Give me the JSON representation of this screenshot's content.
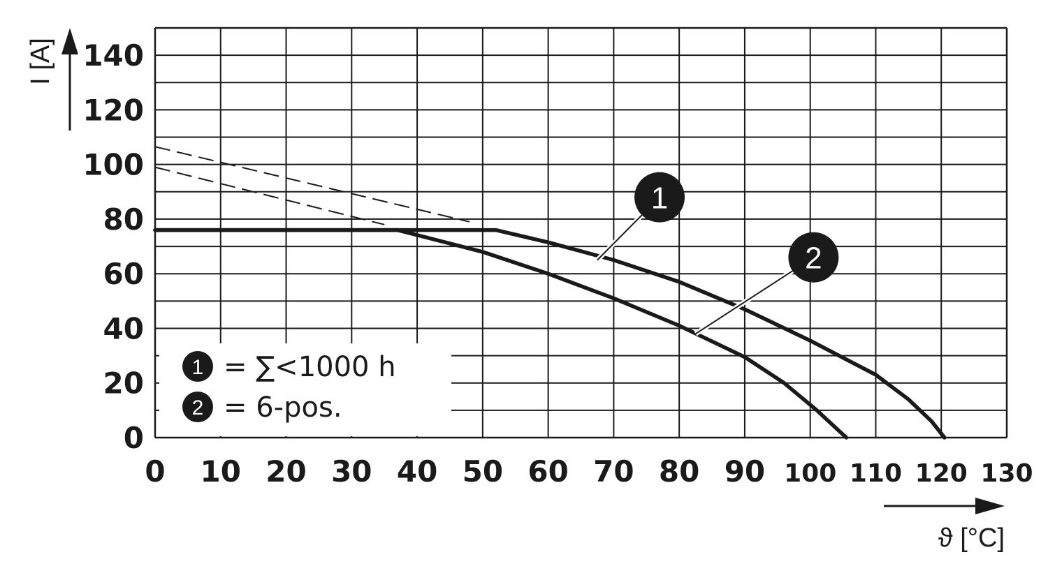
{
  "chart_data": {
    "type": "line",
    "xlabel": "ϑ [°C]",
    "ylabel": "I [A]",
    "xlim": [
      0,
      130
    ],
    "ylim": [
      0,
      150
    ],
    "x_ticks": [
      "0",
      "10",
      "20",
      "30",
      "40",
      "50",
      "60",
      "70",
      "80",
      "90",
      "100",
      "110",
      "120",
      "130"
    ],
    "y_ticks": [
      "0",
      "20",
      "40",
      "60",
      "80",
      "100",
      "120",
      "140"
    ],
    "grid": true,
    "legend_position": "bottom-left",
    "series": [
      {
        "name": "∑<1000 h",
        "badge": "1",
        "points": [
          [
            0,
            76
          ],
          [
            52,
            76
          ],
          [
            60,
            71.5
          ],
          [
            70,
            65
          ],
          [
            80,
            57
          ],
          [
            90,
            47
          ],
          [
            100,
            35.5
          ],
          [
            110,
            23
          ],
          [
            115,
            14
          ],
          [
            118.5,
            6
          ],
          [
            120.5,
            0
          ]
        ],
        "extrapolation": [
          [
            0,
            106.5
          ],
          [
            48,
            79
          ]
        ]
      },
      {
        "name": "6-pos.",
        "badge": "2",
        "points": [
          [
            0,
            76
          ],
          [
            37,
            76
          ],
          [
            50,
            68
          ],
          [
            60,
            60
          ],
          [
            70,
            51
          ],
          [
            80,
            41
          ],
          [
            90,
            29.5
          ],
          [
            96,
            20
          ],
          [
            101,
            10
          ],
          [
            105.5,
            0
          ]
        ],
        "extrapolation": [
          [
            0,
            99
          ],
          [
            35,
            78
          ]
        ]
      }
    ],
    "callouts": [
      {
        "badge": "1",
        "x": 77,
        "y": 88
      },
      {
        "badge": "2",
        "x": 100.5,
        "y": 66
      }
    ],
    "legend": [
      {
        "badge": "1",
        "text": "= ∑<1000 h"
      },
      {
        "badge": "2",
        "text": "= 6-pos."
      }
    ]
  }
}
